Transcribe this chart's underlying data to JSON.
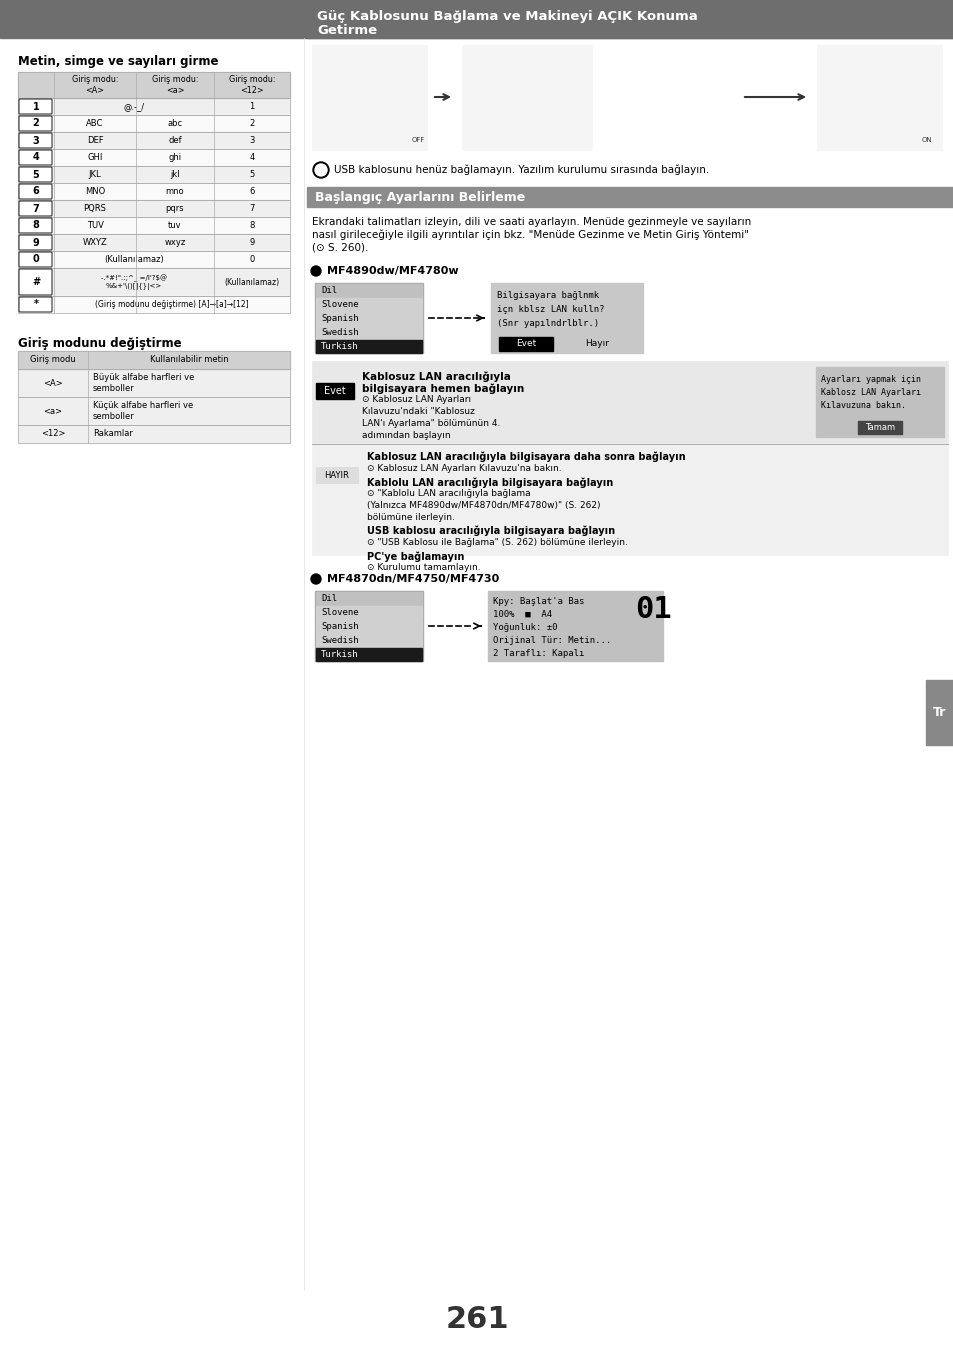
{
  "page_bg": "#ffffff",
  "header_bg": "#6e6e6e",
  "header_text_color": "#ffffff",
  "section_bg": "#8c8c8c",
  "table_header_bg": "#d0d0d0",
  "table_border": "#aaaaaa",
  "page_number": "261",
  "tab_label": "Tr",
  "left_section_title": "Metin, simge ve sayıları girme",
  "section2_title": "Giriş modunu değiştirme",
  "right_header_line1": "Güç Kablosunu Bağlama ve Makineyi AÇIK Konuma",
  "right_header_line2": "Getirme",
  "usb_note": "USB kablosunu henüz bağlamayın. Yazılım kurulumu sırasında bağlayın.",
  "baslangic_header": "Başlangıç Ayarlarını Belirleme",
  "baslangic_text1": "Ekrandaki talimatları izleyin, dili ve saati ayarlayın. Menüde gezinmeyle ve sayıların",
  "baslangic_text2": "nasıl girileceğiyle ilgili ayrıntılar için bkz. \"Menüde Gezinme ve Metin Giriş Yöntemi\"",
  "baslangic_text3": "(⊙ S. 260).",
  "mf4890_label": "MF4890dw/MF4780w",
  "mf4870_label": "MF4870dn/MF4750/MF4730",
  "lang_list": [
    "Dil",
    "Slovene",
    "Spanish",
    "Swedish",
    "Turkish"
  ],
  "dialog_text_line1": "Bilgisayara bağlnmk",
  "dialog_text_line2": "içn kblsz LAN kulln?",
  "dialog_text_line3": "(Snr yapılndrlblr.)",
  "evet_label": "Evet",
  "hayir_label": "Hayır",
  "evet_bold": "Kablosuz LAN aracılığıyla",
  "evet_bold2": "bilgisayara hemen bağlayın",
  "evet_detail1": "⊙ Kablosuz LAN Ayarları",
  "evet_detail2": "Kılavuzu'ndaki \"Kablosuz",
  "evet_detail3": "LAN'ı Ayarlama\" bölümünün 4.",
  "evet_detail4": "adımından başlayın",
  "right_panel_text1": "Ayarları yapmak için",
  "right_panel_text2": "Kablosz LAN Ayarları",
  "right_panel_text3": "Kılavuzuna bakın.",
  "right_panel_btn": "Tamam",
  "hayir_bold1": "Kablosuz LAN aracılığıyla bilgisayara daha sonra bağlayın",
  "hayir_det1": "⊙ Kablosuz LAN Ayarları Kılavuzu'na bakın.",
  "hayir_bold2": "Kablolu LAN aracılığıyla bilgisayara bağlayın",
  "hayir_det2a": "⊙ \"Kablolu LAN aracılığıyla bağlama",
  "hayir_det2b": "(Yalnızca MF4890dw/MF4870dn/MF4780w)\" (S. 262)",
  "hayir_det2c": "bölümüne ilerleyin.",
  "hayir_bold3": "USB kablosu aracılığıyla bilgisayara bağlayın",
  "hayir_det3": "⊙ \"USB Kablosu ile Bağlama\" (S. 262) bölümüne ilerleyin.",
  "hayir_bold4": "PC'ye bağlamayın",
  "hayir_det4": "⊙ Kurulumu tamamlayın.",
  "mf4870_line1": "Kpy: Başlat'a Bas",
  "mf4870_line2": "100%  ■  A4",
  "mf4870_line3": "Yoğunluk: ±0",
  "mf4870_line4": "Orijinal Tür: Metin...",
  "mf4870_line5": "2 Taraflı: Kapalı",
  "mf4870_big": "01"
}
